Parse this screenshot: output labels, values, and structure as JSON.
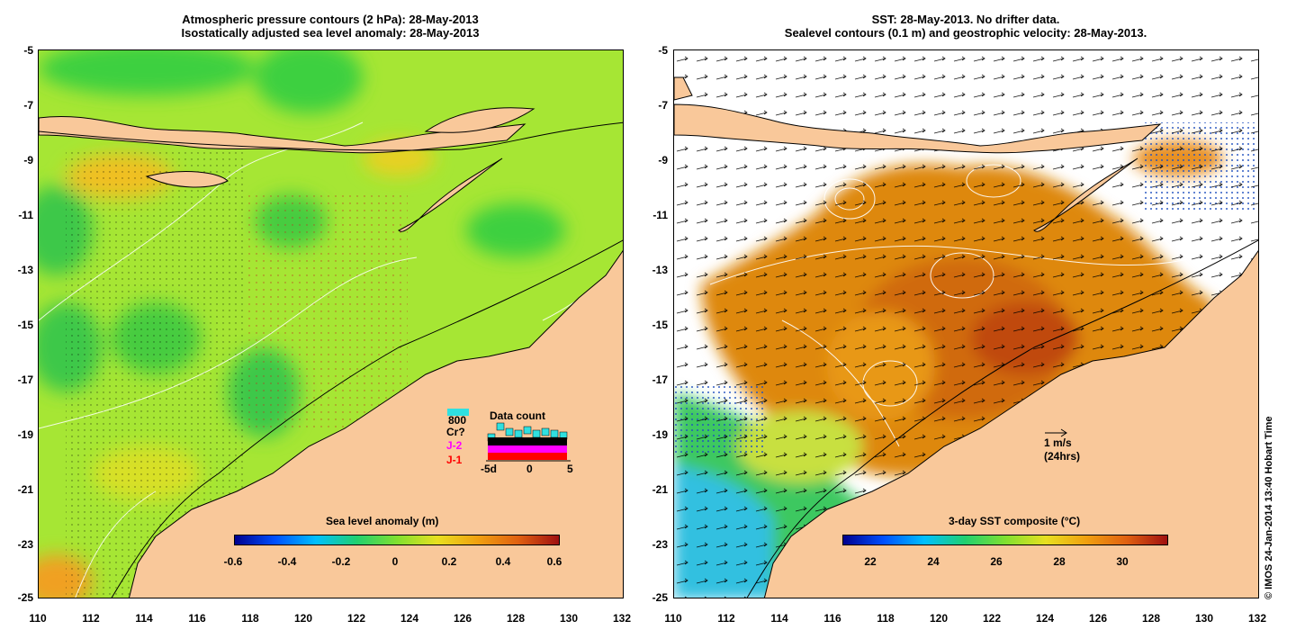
{
  "left_panel": {
    "title_line1": "Atmospheric pressure contours (2 hPa): 28-May-2013",
    "title_line2": "Isostatically adjusted sea level anomaly: 28-May-2013",
    "colorbar_title": "Sea level anomaly (m)",
    "colorbar_labels": [
      "-0.6",
      "-0.4",
      "-0.2",
      "0",
      "0.2",
      "0.4",
      "0.6"
    ],
    "y_ticks": [
      "-5",
      "-7",
      "-9",
      "-11",
      "-13",
      "-15",
      "-17",
      "-19",
      "-21",
      "-23",
      "-25"
    ],
    "x_ticks": [
      "110",
      "112",
      "114",
      "116",
      "118",
      "120",
      "122",
      "124",
      "126",
      "128",
      "130",
      "132"
    ],
    "legend": {
      "top_badge": "800",
      "labels": [
        "Cr?",
        "J-2",
        "J-1"
      ],
      "label_colors": [
        "#000000",
        "#ff00ff",
        "#ff0000"
      ],
      "chart_title": "Data count",
      "axis_labels": [
        "-5d",
        "0",
        "5"
      ]
    }
  },
  "right_panel": {
    "title_line1": "SST: 28-May-2013. No drifter data.",
    "title_line2": "Sealevel contours (0.1 m) and geostrophic velocity: 28-May-2013.",
    "colorbar_title": "3-day SST composite (°C)",
    "colorbar_labels": [
      "22",
      "24",
      "26",
      "28",
      "30"
    ],
    "y_ticks": [
      "-5",
      "-7",
      "-9",
      "-11",
      "-13",
      "-15",
      "-17",
      "-19",
      "-21",
      "-23",
      "-25"
    ],
    "x_ticks": [
      "110",
      "112",
      "114",
      "116",
      "118",
      "120",
      "122",
      "124",
      "126",
      "128",
      "130",
      "132"
    ],
    "velocity_scale_label": "1 m/s",
    "velocity_scale_sub": "(24hrs)"
  },
  "credit": "© IMOS 24-Jan-2014 13:40 Hobart Time",
  "colors": {
    "land": "#f9c89a",
    "sla_base": "#a8e832",
    "sst_base": "#e08810"
  }
}
